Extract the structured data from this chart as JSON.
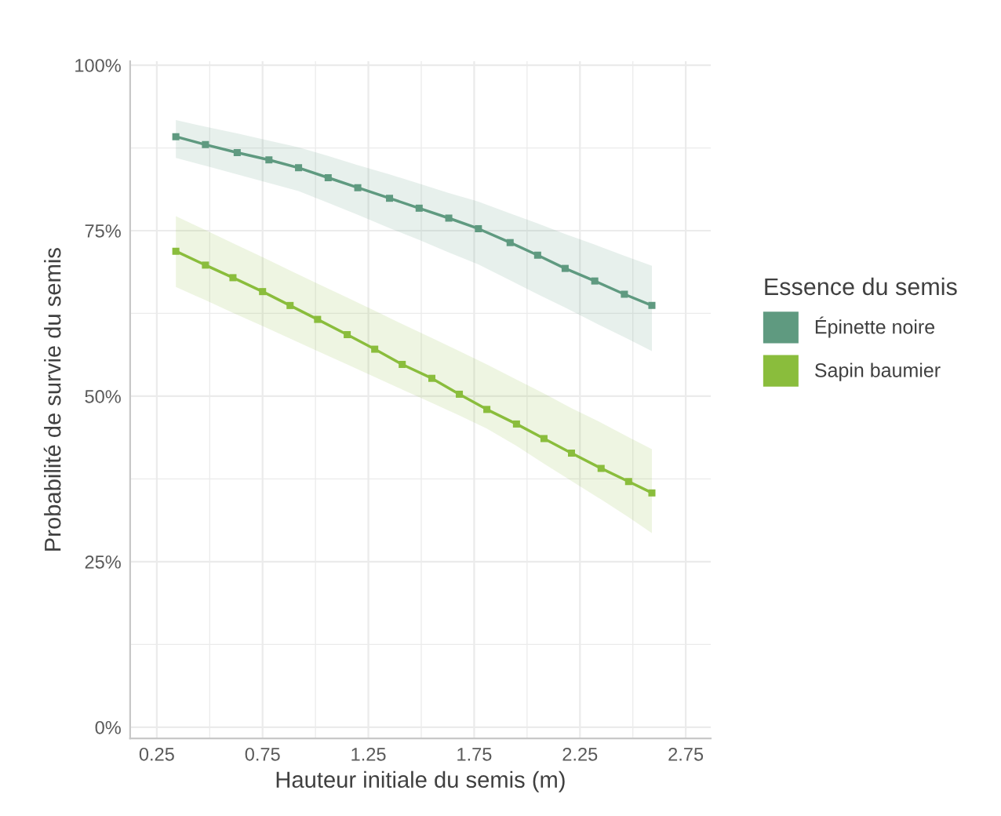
{
  "chart_data": {
    "type": "line",
    "xlabel": "Hauteur initiale du semis (m)",
    "ylabel": "Probabilité de survie du semis",
    "legend_title": "Essence du semis",
    "xlim": [
      0.124,
      2.868
    ],
    "xticks": [
      0.25,
      0.75,
      1.25,
      1.75,
      2.25,
      2.75
    ],
    "ylim": [
      -1.7,
      100.6
    ],
    "yticks": [
      {
        "value": 0,
        "label": "0%"
      },
      {
        "value": 25,
        "label": "25%"
      },
      {
        "value": 50,
        "label": "50%"
      },
      {
        "value": 75,
        "label": "75%"
      },
      {
        "value": 100,
        "label": "100%"
      }
    ],
    "grid": true,
    "legend": "right",
    "marker": "square",
    "series": [
      {
        "name": "Épinette noire",
        "color": "#5f9a80",
        "x": [
          0.34,
          0.48,
          0.63,
          0.78,
          0.92,
          1.06,
          1.2,
          1.35,
          1.49,
          1.63,
          1.77,
          1.92,
          2.05,
          2.18,
          2.32,
          2.46,
          2.59
        ],
        "values": [
          89.2,
          88.0,
          86.8,
          85.7,
          84.5,
          83.0,
          81.5,
          79.9,
          78.4,
          76.9,
          75.3,
          73.2,
          71.3,
          69.3,
          67.4,
          65.4,
          63.7
        ],
        "upper": [
          91.7,
          90.7,
          89.7,
          88.6,
          87.6,
          86.3,
          84.9,
          83.5,
          82.1,
          80.7,
          79.4,
          77.6,
          76.1,
          74.5,
          72.9,
          71.2,
          69.7
        ],
        "lower": [
          86.0,
          84.8,
          83.5,
          82.2,
          81.0,
          79.2,
          77.4,
          75.4,
          73.6,
          71.7,
          69.9,
          67.5,
          65.4,
          63.4,
          61.1,
          58.9,
          56.8
        ]
      },
      {
        "name": "Sapin baumier",
        "color": "#8abd3c",
        "x": [
          0.34,
          0.48,
          0.61,
          0.75,
          0.88,
          1.01,
          1.15,
          1.28,
          1.41,
          1.55,
          1.68,
          1.81,
          1.95,
          2.08,
          2.21,
          2.35,
          2.48,
          2.59
        ],
        "values": [
          71.9,
          69.8,
          67.9,
          65.8,
          63.7,
          61.6,
          59.3,
          57.1,
          54.8,
          52.7,
          50.3,
          48.0,
          45.8,
          43.6,
          41.4,
          39.1,
          37.1,
          35.4
        ],
        "upper": [
          77.2,
          75.1,
          73.1,
          71.0,
          69.0,
          67.0,
          64.9,
          62.9,
          60.9,
          58.8,
          56.8,
          54.8,
          52.5,
          50.4,
          48.2,
          46.0,
          43.8,
          42.0
        ],
        "lower": [
          66.5,
          64.5,
          62.6,
          60.6,
          58.7,
          56.8,
          54.8,
          52.9,
          51.0,
          49.0,
          47.1,
          45.1,
          42.5,
          39.8,
          37.2,
          34.4,
          31.7,
          29.3
        ]
      }
    ]
  }
}
